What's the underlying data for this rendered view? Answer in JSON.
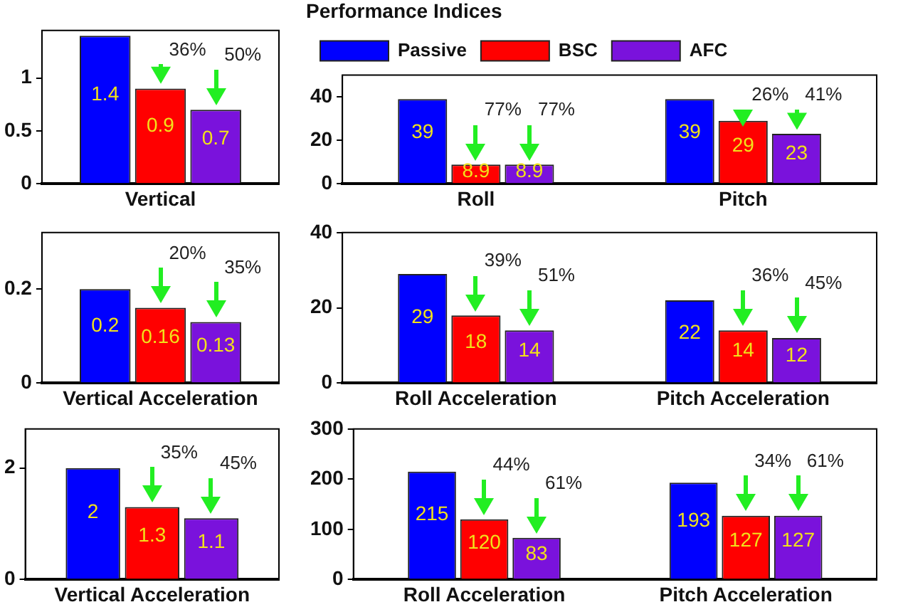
{
  "chart_data": [
    {
      "type": "bar",
      "categories": [
        "Vertical"
      ],
      "ylim": [
        0,
        1.45
      ],
      "yticks": [
        0,
        0.5,
        1
      ],
      "grid": false,
      "data_labels": true,
      "series": [
        {
          "color": "#0000ff",
          "values": [
            1.4
          ]
        },
        {
          "color": "#ff0000",
          "values": [
            0.9
          ]
        },
        {
          "color": "#7a12dc",
          "values": [
            0.7
          ]
        }
      ],
      "annotations": [
        "36%",
        "50%"
      ]
    },
    {
      "type": "bar",
      "title": "Performance Indices",
      "categories": [
        "Roll",
        "Pitch"
      ],
      "ylim": [
        0,
        50
      ],
      "yticks": [
        0,
        20,
        40
      ],
      "grid": false,
      "legend": "top",
      "data_labels": true,
      "series": [
        {
          "name": "Passive",
          "color": "#0000ff",
          "values": [
            39,
            39
          ]
        },
        {
          "name": "BSC",
          "color": "#ff0000",
          "values": [
            8.9,
            29
          ]
        },
        {
          "name": "AFC",
          "color": "#7a12dc",
          "values": [
            8.9,
            23
          ]
        }
      ],
      "annotations": [
        "77%",
        "77%",
        "26%",
        "41%"
      ]
    },
    {
      "type": "bar",
      "categories": [
        "Vertical Acceleration"
      ],
      "ylim": [
        0,
        0.32
      ],
      "yticks": [
        0,
        0.2
      ],
      "grid": false,
      "data_labels": true,
      "series": [
        {
          "color": "#0000ff",
          "values": [
            0.2
          ]
        },
        {
          "color": "#ff0000",
          "values": [
            0.16
          ]
        },
        {
          "color": "#7a12dc",
          "values": [
            0.13
          ]
        }
      ],
      "annotations": [
        "20%",
        "35%"
      ]
    },
    {
      "type": "bar",
      "categories": [
        "Roll Acceleration",
        "Pitch Acceleration"
      ],
      "ylim": [
        0,
        40
      ],
      "yticks": [
        0,
        20,
        40
      ],
      "grid": false,
      "data_labels": true,
      "series": [
        {
          "color": "#0000ff",
          "values": [
            29,
            22
          ]
        },
        {
          "color": "#ff0000",
          "values": [
            18,
            14
          ]
        },
        {
          "color": "#7a12dc",
          "values": [
            14,
            12
          ]
        }
      ],
      "annotations": [
        "39%",
        "51%",
        "36%",
        "45%"
      ]
    },
    {
      "type": "bar",
      "categories": [
        "Vertical Acceleration"
      ],
      "ylim": [
        0,
        2.7
      ],
      "yticks": [
        0,
        2
      ],
      "grid": false,
      "data_labels": true,
      "series": [
        {
          "color": "#0000ff",
          "values": [
            2
          ]
        },
        {
          "color": "#ff0000",
          "values": [
            1.3
          ]
        },
        {
          "color": "#7a12dc",
          "values": [
            1.1
          ]
        }
      ],
      "annotations": [
        "35%",
        "45%"
      ]
    },
    {
      "type": "bar",
      "categories": [
        "Roll Acceleration",
        "Pitch Acceleration"
      ],
      "ylim": [
        0,
        300
      ],
      "yticks": [
        0,
        100,
        200,
        300
      ],
      "grid": false,
      "data_labels": true,
      "series": [
        {
          "color": "#0000ff",
          "values": [
            215,
            193
          ]
        },
        {
          "color": "#ff0000",
          "values": [
            120,
            127
          ]
        },
        {
          "color": "#7a12dc",
          "values": [
            83,
            127
          ]
        }
      ],
      "annotations": [
        "44%",
        "61%",
        "34%",
        "61%"
      ]
    }
  ]
}
